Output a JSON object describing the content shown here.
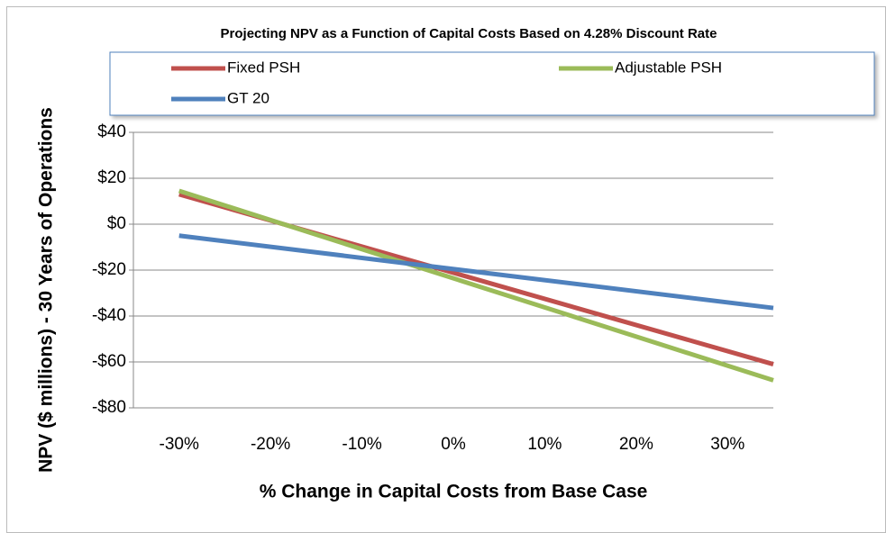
{
  "chart_data": {
    "type": "line",
    "title": "Projecting NPV as a Function of Capital Costs Based on 4.28% Discount Rate",
    "x_label": "% Change in Capital Costs from Base Case",
    "y_label": "NPV ($ millions) - 30 Years of Operations",
    "x": [
      -30,
      35
    ],
    "series": [
      {
        "name": "Fixed PSH",
        "color": "#c0504d",
        "values": [
          13,
          -61
        ]
      },
      {
        "name": "Adjustable PSH",
        "color": "#9bbb59",
        "values": [
          14.5,
          -68
        ]
      },
      {
        "name": "GT 20",
        "color": "#4f81bd",
        "values": [
          -5,
          -36.5
        ]
      }
    ],
    "xlim": [
      -35,
      35
    ],
    "xticks": [
      {
        "value": -30,
        "label": "-30%"
      },
      {
        "value": -20,
        "label": "-20%"
      },
      {
        "value": -10,
        "label": "-10%"
      },
      {
        "value": 0,
        "label": "0%"
      },
      {
        "value": 10,
        "label": "10%"
      },
      {
        "value": 20,
        "label": "20%"
      },
      {
        "value": 30,
        "label": "30%"
      }
    ],
    "ylim": [
      -80,
      40
    ],
    "yticks": [
      {
        "value": 40,
        "label": "$40"
      },
      {
        "value": 20,
        "label": "$20"
      },
      {
        "value": 0,
        "label": "$0"
      },
      {
        "value": -20,
        "label": "-$20"
      },
      {
        "value": -40,
        "label": "-$40"
      },
      {
        "value": -60,
        "label": "-$60"
      },
      {
        "value": -80,
        "label": "-$80"
      }
    ],
    "grid": true
  }
}
